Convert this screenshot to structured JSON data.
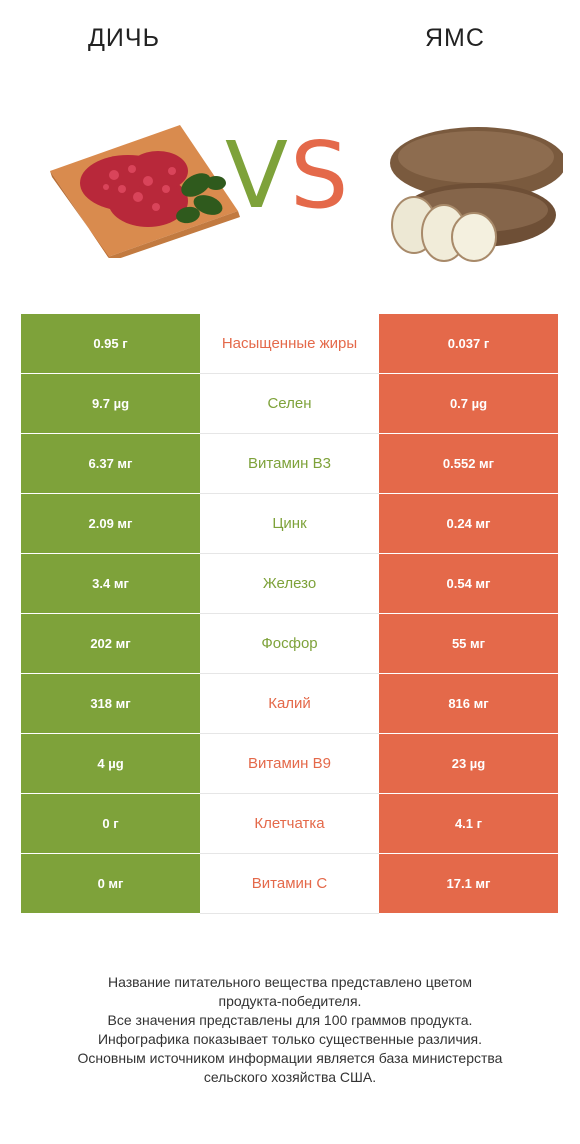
{
  "header": {
    "left_title": "ДИЧЬ",
    "right_title": "ЯМС"
  },
  "vs": {
    "v": "V",
    "s": "S"
  },
  "colors": {
    "left": "#7ea23a",
    "right": "#e4694a"
  },
  "rows": [
    {
      "left": "0.95 г",
      "nutrient": "Насыщенные жиры",
      "right": "0.037 г",
      "winner": "right"
    },
    {
      "left": "9.7 µg",
      "nutrient": "Селен",
      "right": "0.7 µg",
      "winner": "left"
    },
    {
      "left": "6.37 мг",
      "nutrient": "Витамин B3",
      "right": "0.552 мг",
      "winner": "left"
    },
    {
      "left": "2.09 мг",
      "nutrient": "Цинк",
      "right": "0.24 мг",
      "winner": "left"
    },
    {
      "left": "3.4 мг",
      "nutrient": "Железо",
      "right": "0.54 мг",
      "winner": "left"
    },
    {
      "left": "202 мг",
      "nutrient": "Фосфор",
      "right": "55 мг",
      "winner": "left"
    },
    {
      "left": "318 мг",
      "nutrient": "Калий",
      "right": "816 мг",
      "winner": "right"
    },
    {
      "left": "4 µg",
      "nutrient": "Витамин B9",
      "right": "23 µg",
      "winner": "right"
    },
    {
      "left": "0 г",
      "nutrient": "Клетчатка",
      "right": "4.1 г",
      "winner": "right"
    },
    {
      "left": "0 мг",
      "nutrient": "Витамин C",
      "right": "17.1 мг",
      "winner": "right"
    }
  ],
  "footnote": [
    "Название питательного вещества представлено цветом",
    "продукта-победителя.",
    "Все значения представлены для 100 граммов продукта.",
    "Инфографика показывает только существенные различия.",
    "Основным источником информации является база министерства",
    "сельского хозяйства США."
  ]
}
